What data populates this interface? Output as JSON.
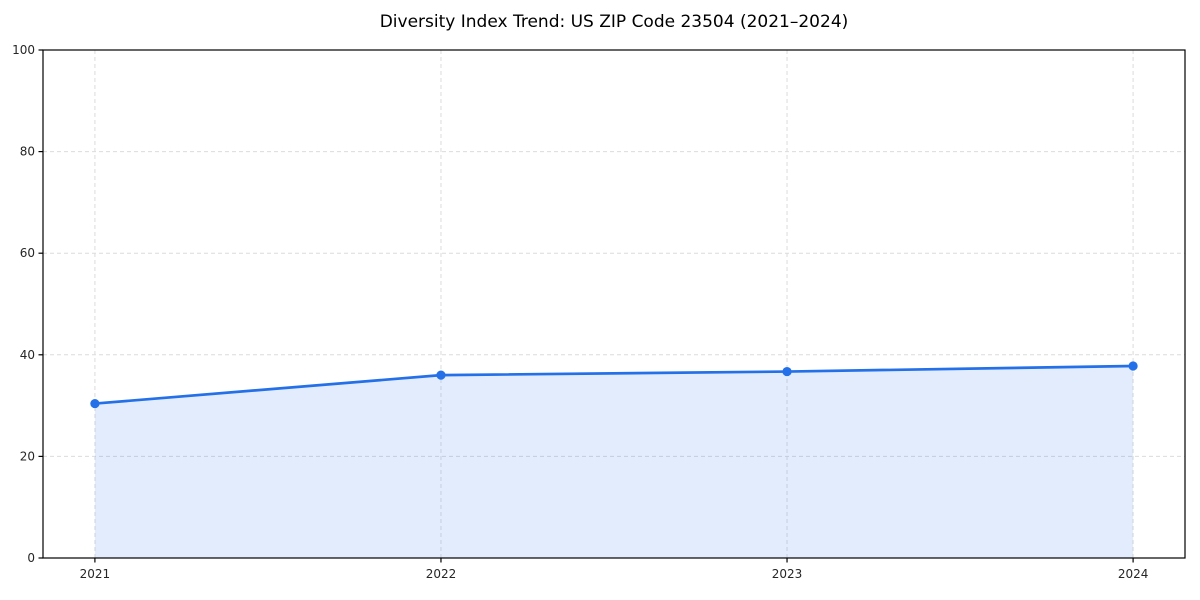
{
  "page": {
    "background": "#ffffff"
  },
  "chart_data": {
    "type": "area",
    "title": "Diversity Index Trend: US ZIP Code 23504 (2021–2024)",
    "x": [
      2021,
      2022,
      2023,
      2024
    ],
    "values": [
      30.4,
      36.0,
      36.7,
      37.8
    ],
    "series_name": "Diversity Index",
    "xlabel": "",
    "ylabel": "",
    "xlim": [
      2020.85,
      2024.15
    ],
    "ylim": [
      0,
      100
    ],
    "xticks": [
      2021,
      2022,
      2023,
      2024
    ],
    "yticks": [
      0,
      20,
      40,
      60,
      80,
      100
    ],
    "grid": true,
    "grid_style": "dashed",
    "legend_position": "none",
    "marker": "circle",
    "colors": {
      "line": "#2470e8",
      "marker": "#2470e8",
      "fill": "rgba(36,112,232,0.13)",
      "grid": "#dcdcdc",
      "axis": "#000000",
      "tick_label": "#262626",
      "title": "#000000"
    }
  }
}
